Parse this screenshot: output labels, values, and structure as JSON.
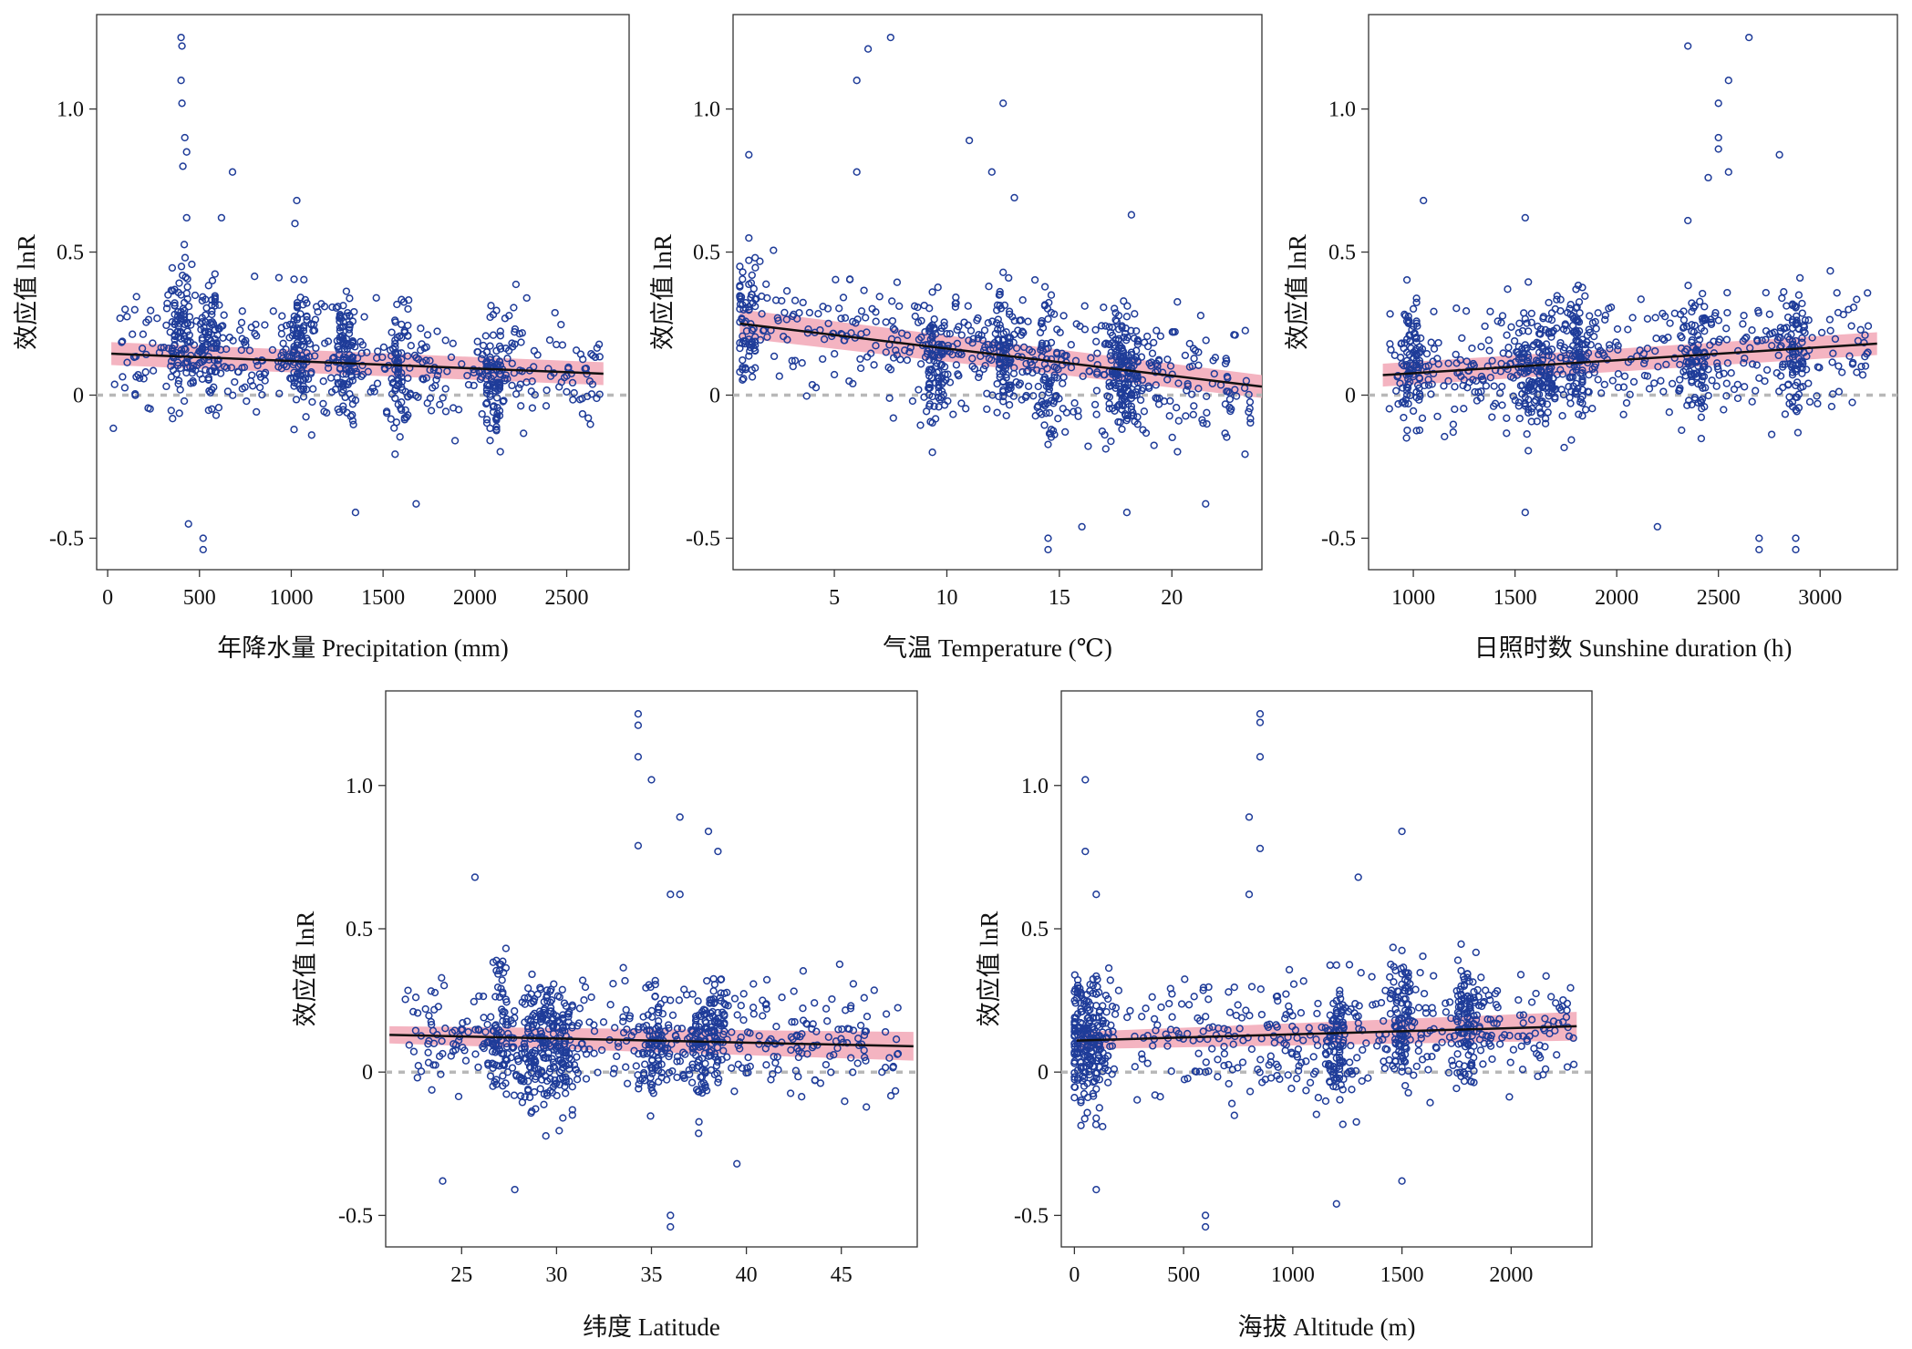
{
  "figure": {
    "colors": {
      "points": "#1f3c99",
      "band": "#f2a7b6",
      "trend": "#111111",
      "zero_line": "#b8b8b8",
      "frame": "#333333"
    }
  },
  "chart_data": [
    {
      "type": "scatter",
      "title": "",
      "xlabel": "年降水量 Precipitation (mm)",
      "ylabel": "效应值 lnR",
      "xlim": [
        -60,
        2840
      ],
      "ylim": [
        -0.61,
        1.33
      ],
      "x_ticks": [
        0,
        500,
        1000,
        1500,
        2000,
        2500
      ],
      "y_ticks": [
        -0.5,
        0,
        0.5,
        1.0
      ],
      "x_tick_labels": [
        "0",
        "500",
        "1000",
        "1500",
        "2000",
        "2500"
      ],
      "y_tick_labels": [
        "-0.5",
        "0",
        "0.5",
        "1.0"
      ],
      "reference_line_y": 0,
      "trend": {
        "x": [
          20,
          2700
        ],
        "y": [
          0.145,
          0.075
        ]
      },
      "ci_band": {
        "x": [
          20,
          2700
        ],
        "lower": [
          0.105,
          0.035
        ],
        "upper": [
          0.185,
          0.115
        ]
      },
      "point_spec": {
        "x_min": 30,
        "x_max": 2680,
        "clusters": [
          [
            400,
            0.25
          ],
          [
            550,
            0.18
          ],
          [
            1050,
            0.18
          ],
          [
            1300,
            0.13
          ],
          [
            1600,
            0.1
          ],
          [
            2100,
            0.07
          ]
        ]
      },
      "outliers": [
        [
          400,
          1.25
        ],
        [
          405,
          1.22
        ],
        [
          400,
          1.1
        ],
        [
          405,
          1.02
        ],
        [
          420,
          0.9
        ],
        [
          430,
          0.85
        ],
        [
          410,
          0.8
        ],
        [
          680,
          0.78
        ],
        [
          1030,
          0.68
        ],
        [
          430,
          0.62
        ],
        [
          620,
          0.62
        ],
        [
          1020,
          0.6
        ],
        [
          440,
          -0.45
        ],
        [
          520,
          -0.5
        ],
        [
          520,
          -0.54
        ],
        [
          1350,
          -0.41
        ],
        [
          1680,
          -0.38
        ]
      ],
      "n_points": 900
    },
    {
      "type": "scatter",
      "title": "",
      "xlabel": "气温 Temperature (℃)",
      "ylabel": "效应值 lnR",
      "xlim": [
        0.5,
        24
      ],
      "ylim": [
        -0.61,
        1.33
      ],
      "x_ticks": [
        5,
        10,
        15,
        20
      ],
      "y_ticks": [
        -0.5,
        0,
        0.5,
        1.0
      ],
      "x_tick_labels": [
        "5",
        "10",
        "15",
        "20"
      ],
      "y_tick_labels": [
        "-0.5",
        "0",
        "0.5",
        "1.0"
      ],
      "reference_line_y": 0,
      "trend": {
        "x": [
          0.8,
          24
        ],
        "y": [
          0.25,
          0.03
        ]
      },
      "ci_band": {
        "x": [
          0.8,
          24
        ],
        "lower": [
          0.2,
          -0.01
        ],
        "upper": [
          0.3,
          0.07
        ]
      },
      "point_spec": {
        "x_min": 0.8,
        "x_max": 23.5,
        "clusters": [
          [
            1.2,
            0.28
          ],
          [
            9.5,
            0.1
          ],
          [
            12.5,
            0.15
          ],
          [
            14.5,
            0.08
          ],
          [
            17.5,
            0.1
          ],
          [
            18.2,
            0.08
          ]
        ]
      },
      "outliers": [
        [
          7.5,
          1.25
        ],
        [
          6.5,
          1.21
        ],
        [
          6,
          1.1
        ],
        [
          12.5,
          1.02
        ],
        [
          11,
          0.89
        ],
        [
          1.2,
          0.84
        ],
        [
          6,
          0.78
        ],
        [
          12,
          0.78
        ],
        [
          13,
          0.69
        ],
        [
          18.2,
          0.63
        ],
        [
          14.5,
          -0.5
        ],
        [
          14.5,
          -0.54
        ],
        [
          16,
          -0.46
        ],
        [
          21.5,
          -0.38
        ],
        [
          18,
          -0.41
        ]
      ],
      "n_points": 900
    },
    {
      "type": "scatter",
      "title": "",
      "xlabel": "日照时数 Sunshine duration (h)",
      "ylabel": "效应值 lnR",
      "xlim": [
        780,
        3380
      ],
      "ylim": [
        -0.61,
        1.33
      ],
      "x_ticks": [
        1000,
        1500,
        2000,
        2500,
        3000
      ],
      "y_ticks": [
        -0.5,
        0,
        0.5,
        1.0
      ],
      "x_tick_labels": [
        "1000",
        "1500",
        "2000",
        "2500",
        "3000"
      ],
      "y_tick_labels": [
        "-0.5",
        "0",
        "0.5",
        "1.0"
      ],
      "reference_line_y": 0,
      "trend": {
        "x": [
          850,
          3280
        ],
        "y": [
          0.07,
          0.18
        ]
      },
      "ci_band": {
        "x": [
          850,
          3280
        ],
        "lower": [
          0.03,
          0.14
        ],
        "upper": [
          0.11,
          0.22
        ]
      },
      "point_spec": {
        "x_min": 880,
        "x_max": 3250,
        "clusters": [
          [
            1000,
            0.1
          ],
          [
            1550,
            0.12
          ],
          [
            1650,
            0.1
          ],
          [
            1800,
            0.13
          ],
          [
            2400,
            0.15
          ],
          [
            2880,
            0.17
          ]
        ]
      },
      "outliers": [
        [
          2650,
          1.25
        ],
        [
          2350,
          1.22
        ],
        [
          2550,
          1.1
        ],
        [
          2500,
          1.02
        ],
        [
          2500,
          0.9
        ],
        [
          2500,
          0.86
        ],
        [
          2800,
          0.84
        ],
        [
          2550,
          0.78
        ],
        [
          2450,
          0.76
        ],
        [
          1050,
          0.68
        ],
        [
          2350,
          0.61
        ],
        [
          1550,
          0.62
        ],
        [
          2700,
          -0.5
        ],
        [
          2700,
          -0.54
        ],
        [
          2880,
          -0.5
        ],
        [
          2880,
          -0.54
        ],
        [
          2200,
          -0.46
        ],
        [
          1550,
          -0.41
        ]
      ],
      "n_points": 900
    },
    {
      "type": "scatter",
      "title": "",
      "xlabel": "纬度 Latitude",
      "ylabel": "效应值 lnR",
      "xlim": [
        21,
        49
      ],
      "ylim": [
        -0.61,
        1.33
      ],
      "x_ticks": [
        25,
        30,
        35,
        40,
        45
      ],
      "y_ticks": [
        -0.5,
        0,
        0.5,
        1.0
      ],
      "x_tick_labels": [
        "25",
        "30",
        "35",
        "40",
        "45"
      ],
      "y_tick_labels": [
        "-0.5",
        "0",
        "0.5",
        "1.0"
      ],
      "reference_line_y": 0,
      "trend": {
        "x": [
          21.2,
          48.8
        ],
        "y": [
          0.13,
          0.09
        ]
      },
      "ci_band": {
        "x": [
          21.2,
          48.8
        ],
        "lower": [
          0.1,
          0.04
        ],
        "upper": [
          0.16,
          0.14
        ]
      },
      "point_spec": {
        "x_min": 22,
        "x_max": 48,
        "clusters": [
          [
            27,
            0.15
          ],
          [
            28.5,
            0.08
          ],
          [
            29.5,
            0.1
          ],
          [
            30.5,
            0.08
          ],
          [
            35.2,
            0.1
          ],
          [
            37.5,
            0.08
          ],
          [
            38.5,
            0.18
          ]
        ]
      },
      "outliers": [
        [
          34.3,
          1.25
        ],
        [
          34.3,
          1.21
        ],
        [
          34.3,
          1.1
        ],
        [
          35,
          1.02
        ],
        [
          36.5,
          0.89
        ],
        [
          38,
          0.84
        ],
        [
          38.5,
          0.77
        ],
        [
          34.3,
          0.79
        ],
        [
          25.7,
          0.68
        ],
        [
          36.5,
          0.62
        ],
        [
          36,
          0.62
        ],
        [
          36,
          -0.5
        ],
        [
          36,
          -0.54
        ],
        [
          27.8,
          -0.41
        ],
        [
          24,
          -0.38
        ],
        [
          39.5,
          -0.32
        ]
      ],
      "n_points": 900
    },
    {
      "type": "scatter",
      "title": "",
      "xlabel": "海拔 Altitude (m)",
      "ylabel": "效应值 lnR",
      "xlim": [
        -60,
        2370
      ],
      "ylim": [
        -0.61,
        1.33
      ],
      "x_ticks": [
        0,
        500,
        1000,
        1500,
        2000
      ],
      "y_ticks": [
        -0.5,
        0,
        0.5,
        1.0
      ],
      "x_tick_labels": [
        "0",
        "500",
        "1000",
        "1500",
        "2000"
      ],
      "y_tick_labels": [
        "-0.5",
        "0",
        "0.5",
        "1.0"
      ],
      "reference_line_y": 0,
      "trend": {
        "x": [
          10,
          2300
        ],
        "y": [
          0.11,
          0.16
        ]
      },
      "ci_band": {
        "x": [
          10,
          2300
        ],
        "lower": [
          0.08,
          0.11
        ],
        "upper": [
          0.14,
          0.21
        ]
      },
      "point_spec": {
        "x_min": 0,
        "x_max": 2300,
        "clusters": [
          [
            30,
            0.12
          ],
          [
            100,
            0.1
          ],
          [
            1200,
            0.1
          ],
          [
            1500,
            0.15
          ],
          [
            1800,
            0.18
          ]
        ]
      },
      "outliers": [
        [
          850,
          1.25
        ],
        [
          850,
          1.22
        ],
        [
          850,
          1.1
        ],
        [
          50,
          1.02
        ],
        [
          800,
          0.89
        ],
        [
          1500,
          0.84
        ],
        [
          50,
          0.77
        ],
        [
          850,
          0.78
        ],
        [
          1300,
          0.68
        ],
        [
          800,
          0.62
        ],
        [
          100,
          0.62
        ],
        [
          600,
          -0.5
        ],
        [
          600,
          -0.54
        ],
        [
          100,
          -0.41
        ],
        [
          1200,
          -0.46
        ],
        [
          1500,
          -0.38
        ]
      ],
      "n_points": 900
    }
  ]
}
